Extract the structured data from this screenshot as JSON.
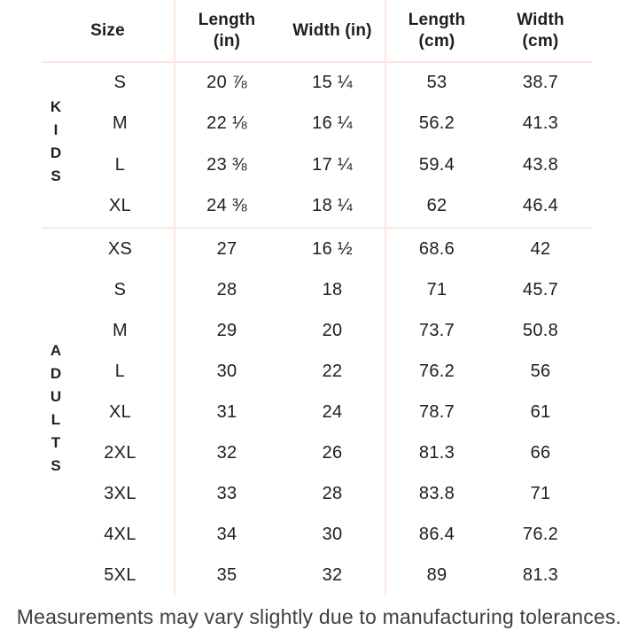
{
  "table": {
    "columns": [
      "Size",
      "Length\n(in)",
      "Width (in)",
      "Length\n(cm)",
      "Width\n(cm)"
    ],
    "sections": {
      "kids": {
        "group": "KIDS",
        "rows": [
          {
            "size": "S",
            "length_in": "20 ⅞",
            "width_in": "15 ¼",
            "length_cm": "53",
            "width_cm": "38.7"
          },
          {
            "size": "M",
            "length_in": "22 ⅛",
            "width_in": "16 ¼",
            "length_cm": "56.2",
            "width_cm": "41.3"
          },
          {
            "size": "L",
            "length_in": "23 ⅜",
            "width_in": "17 ¼",
            "length_cm": "59.4",
            "width_cm": "43.8"
          },
          {
            "size": "XL",
            "length_in": "24 ⅜",
            "width_in": "18 ¼",
            "length_cm": "62",
            "width_cm": "46.4"
          }
        ]
      },
      "adults": {
        "group": "ADULTS",
        "rows": [
          {
            "size": "XS",
            "length_in": "27",
            "width_in": "16 ½",
            "length_cm": "68.6",
            "width_cm": "42"
          },
          {
            "size": "S",
            "length_in": "28",
            "width_in": "18",
            "length_cm": "71",
            "width_cm": "45.7"
          },
          {
            "size": "M",
            "length_in": "29",
            "width_in": "20",
            "length_cm": "73.7",
            "width_cm": "50.8"
          },
          {
            "size": "L",
            "length_in": "30",
            "width_in": "22",
            "length_cm": "76.2",
            "width_cm": "56"
          },
          {
            "size": "XL",
            "length_in": "31",
            "width_in": "24",
            "length_cm": "78.7",
            "width_cm": "61"
          },
          {
            "size": "2XL",
            "length_in": "32",
            "width_in": "26",
            "length_cm": "81.3",
            "width_cm": "66"
          },
          {
            "size": "3XL",
            "length_in": "33",
            "width_in": "28",
            "length_cm": "83.8",
            "width_cm": "71"
          },
          {
            "size": "4XL",
            "length_in": "34",
            "width_in": "30",
            "length_cm": "86.4",
            "width_cm": "76.2"
          },
          {
            "size": "5XL",
            "length_in": "35",
            "width_in": "32",
            "length_cm": "89",
            "width_cm": "81.3"
          }
        ]
      }
    }
  },
  "footer": {
    "note": "Measurements may vary slightly due to manufacturing tolerances."
  },
  "colors": {
    "background": "#ffffff",
    "divider": "#fbe7de",
    "text": "#1e1e1e",
    "footer_text": "#3f3f3f"
  }
}
